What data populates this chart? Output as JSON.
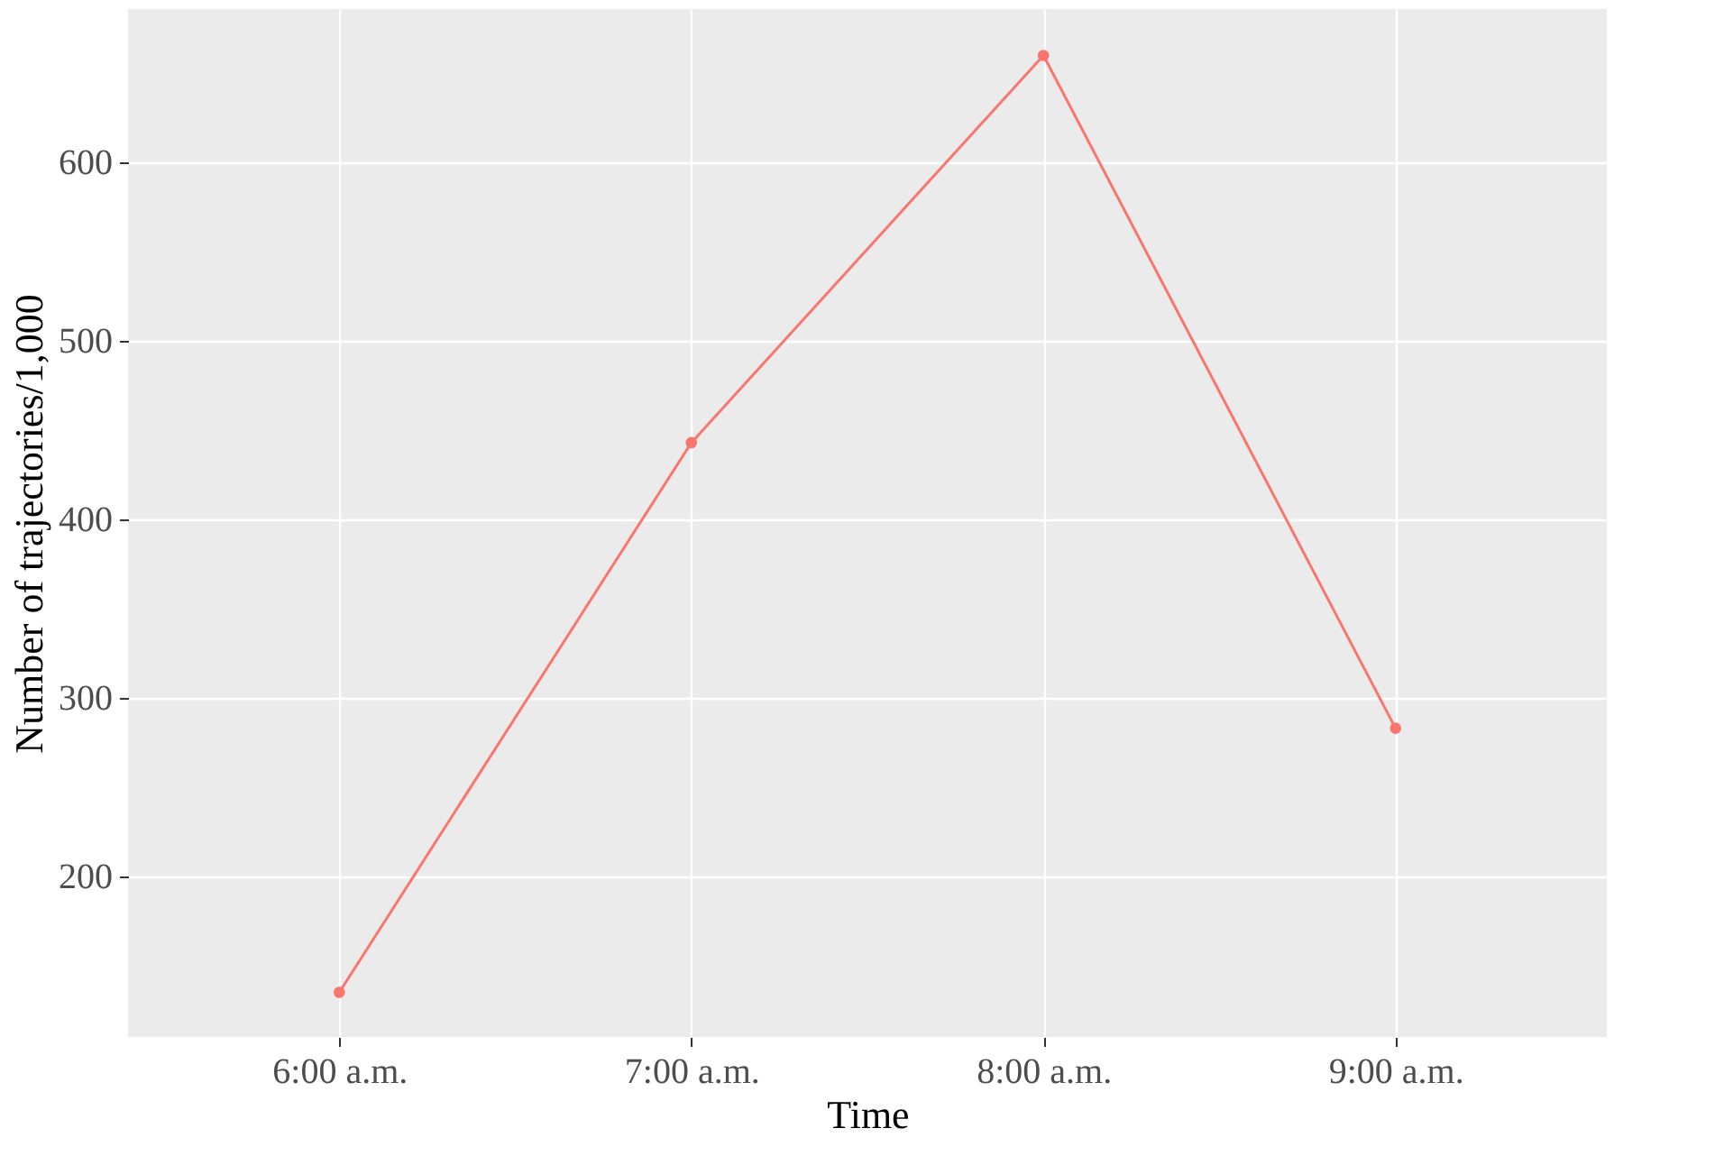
{
  "chart_data": {
    "type": "line",
    "xlabel": "Time",
    "ylabel": "Number of trajectories/1,000",
    "categories": [
      "6:00 a.m.",
      "7:00 a.m.",
      "8:00 a.m.",
      "9:00 a.m."
    ],
    "series": [
      {
        "color": "#f8766d",
        "values": [
          135,
          443,
          660,
          283
        ]
      }
    ],
    "ylim": [
      110,
      686
    ],
    "yticks": [
      200,
      300,
      400,
      500,
      600
    ],
    "grid": true,
    "marker": "circle",
    "line_style": "solid",
    "legend": false
  }
}
